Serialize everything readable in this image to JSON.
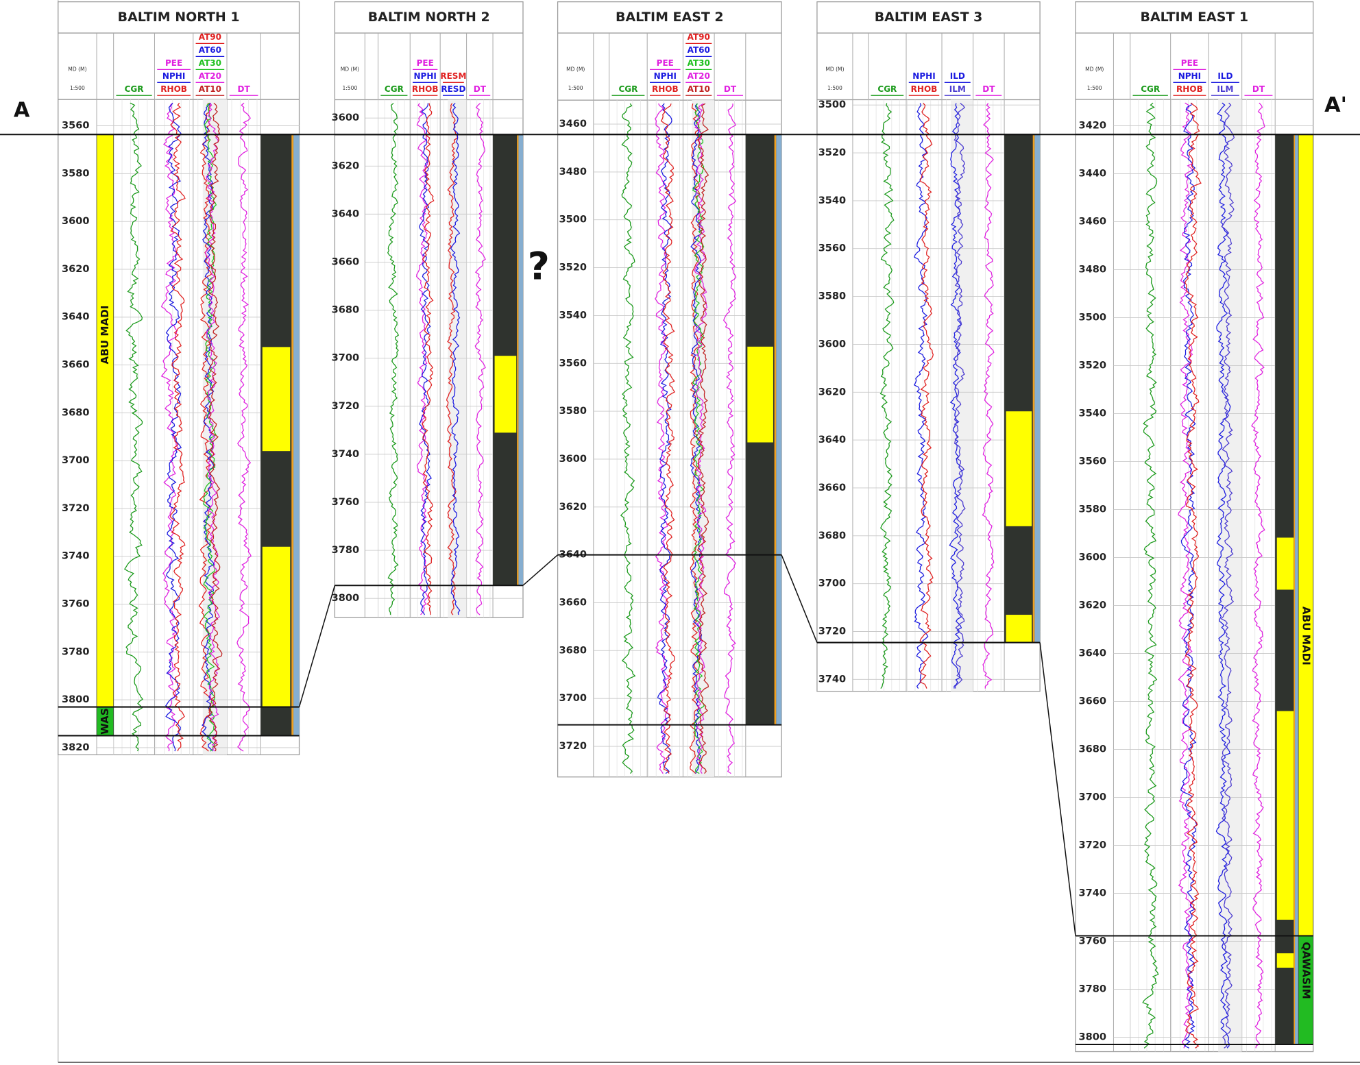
{
  "section": {
    "left_label": "A",
    "right_label": "A'",
    "unknown": "?"
  },
  "depth_header": {
    "unit": "MD (M)",
    "scale": "1:500"
  },
  "wells": [
    {
      "name": "BALTIM NORTH 1",
      "depth_range": [
        3549,
        3823
      ],
      "depth_ticks": [
        3560,
        3580,
        3600,
        3620,
        3640,
        3660,
        3680,
        3700,
        3720,
        3740,
        3760,
        3780,
        3800,
        3820
      ],
      "tracks": [
        [
          {
            "name": "CGR",
            "color": "#1a9a1a"
          }
        ],
        [
          {
            "name": "PEE",
            "color": "#e020e0"
          },
          {
            "name": "NPHI",
            "color": "#1a1ae0"
          },
          {
            "name": "RHOB",
            "color": "#e02020"
          }
        ],
        [
          {
            "name": "AT90",
            "color": "#e02020"
          },
          {
            "name": "AT60",
            "color": "#1a1ae0"
          },
          {
            "name": "AT30",
            "color": "#20c020"
          },
          {
            "name": "AT20",
            "color": "#e020e0"
          },
          {
            "name": "AT10",
            "color": "#c02020"
          }
        ],
        [
          {
            "name": "DT",
            "color": "#e020e0"
          }
        ]
      ],
      "horizons": [
        3563.6,
        3803,
        3815
      ],
      "sands": [
        [
          3652.5,
          3696
        ],
        [
          3736,
          3803
        ]
      ],
      "formations": [
        {
          "name": "ABU MADI",
          "top": 3563.6,
          "base": 3803,
          "color": "#ffff00",
          "side": "left"
        },
        {
          "name": "WAS",
          "top": 3803,
          "base": 3815,
          "color": "#22bb22",
          "side": "left"
        }
      ]
    },
    {
      "name": "BALTIM NORTH 2",
      "depth_range": [
        3592.4,
        3808
      ],
      "depth_ticks": [
        3600,
        3620,
        3640,
        3660,
        3680,
        3700,
        3720,
        3740,
        3760,
        3780,
        3800
      ],
      "tracks": [
        [
          {
            "name": "CGR",
            "color": "#1a9a1a"
          }
        ],
        [
          {
            "name": "PEE",
            "color": "#e020e0"
          },
          {
            "name": "NPHI",
            "color": "#1a1ae0"
          },
          {
            "name": "RHOB",
            "color": "#e02020"
          }
        ],
        [
          {
            "name": "RESM",
            "color": "#e02020"
          },
          {
            "name": "RESD",
            "color": "#1a1ae0"
          }
        ],
        [
          {
            "name": "DT",
            "color": "#e020e0"
          }
        ]
      ],
      "horizons": [
        3606.9,
        3794.6
      ],
      "sands": [
        [
          3699,
          3731
        ]
      ],
      "formations": []
    },
    {
      "name": "BALTIM EAST 2",
      "depth_range": [
        3450,
        3732.8
      ],
      "depth_ticks": [
        3460,
        3480,
        3500,
        3520,
        3540,
        3560,
        3580,
        3600,
        3620,
        3640,
        3660,
        3680,
        3700,
        3720
      ],
      "tracks": [
        [
          {
            "name": "CGR",
            "color": "#1a9a1a"
          }
        ],
        [
          {
            "name": "PEE",
            "color": "#e020e0"
          },
          {
            "name": "NPHI",
            "color": "#1a1ae0"
          },
          {
            "name": "RHOB",
            "color": "#e02020"
          }
        ],
        [
          {
            "name": "AT90",
            "color": "#e02020"
          },
          {
            "name": "AT60",
            "color": "#1a1ae0"
          },
          {
            "name": "AT30",
            "color": "#20c020"
          },
          {
            "name": "AT20",
            "color": "#e020e0"
          },
          {
            "name": "AT10",
            "color": "#c02020"
          }
        ],
        [
          {
            "name": "DT",
            "color": "#e020e0"
          }
        ]
      ],
      "horizons": [
        3464.3,
        3640,
        3711
      ],
      "sands": [
        [
          3553,
          3593
        ]
      ],
      "formations": []
    },
    {
      "name": "BALTIM EAST 3",
      "depth_range": [
        3497.8,
        3745
      ],
      "depth_ticks": [
        3500,
        3520,
        3540,
        3560,
        3580,
        3600,
        3620,
        3640,
        3660,
        3680,
        3700,
        3720,
        3740
      ],
      "tracks": [
        [
          {
            "name": "CGR",
            "color": "#1a9a1a"
          }
        ],
        [
          {
            "name": "NPHI",
            "color": "#1a1ae0"
          },
          {
            "name": "RHOB",
            "color": "#e02020"
          }
        ],
        [
          {
            "name": "ILD",
            "color": "#1a1ae0"
          },
          {
            "name": "ILM",
            "color": "#4a3ad0"
          }
        ],
        [
          {
            "name": "DT",
            "color": "#e020e0"
          }
        ]
      ],
      "horizons": [
        3512.3,
        3724.6
      ],
      "sands": [
        [
          3628,
          3676
        ],
        [
          3713,
          3724.6
        ]
      ],
      "formations": []
    },
    {
      "name": "BALTIM EAST 1",
      "depth_range": [
        3409,
        3806
      ],
      "depth_ticks": [
        3420,
        3440,
        3460,
        3480,
        3500,
        3520,
        3540,
        3560,
        3580,
        3600,
        3620,
        3640,
        3660,
        3680,
        3700,
        3720,
        3740,
        3760,
        3780,
        3800
      ],
      "tracks": [
        [
          {
            "name": "CGR",
            "color": "#1a9a1a"
          }
        ],
        [
          {
            "name": "PEE",
            "color": "#e020e0"
          },
          {
            "name": "NPHI",
            "color": "#1a1ae0"
          },
          {
            "name": "RHOB",
            "color": "#e02020"
          }
        ],
        [
          {
            "name": "ILD",
            "color": "#1a1ae0"
          },
          {
            "name": "ILM",
            "color": "#4a3ad0"
          }
        ],
        [
          {
            "name": "DT",
            "color": "#e020e0"
          }
        ]
      ],
      "horizons": [
        3423.6,
        3757.7,
        3803
      ],
      "sands": [
        [
          3591.7,
          3613.4
        ],
        [
          3664,
          3751
        ],
        [
          3765,
          3771
        ]
      ],
      "formations": [
        {
          "name": "ABU MADI",
          "top": 3423.6,
          "base": 3757.7,
          "color": "#ffff00",
          "side": "right"
        },
        {
          "name": "QAWASIM",
          "top": 3757.7,
          "base": 3803,
          "color": "#22bb22",
          "side": "right"
        }
      ]
    }
  ]
}
